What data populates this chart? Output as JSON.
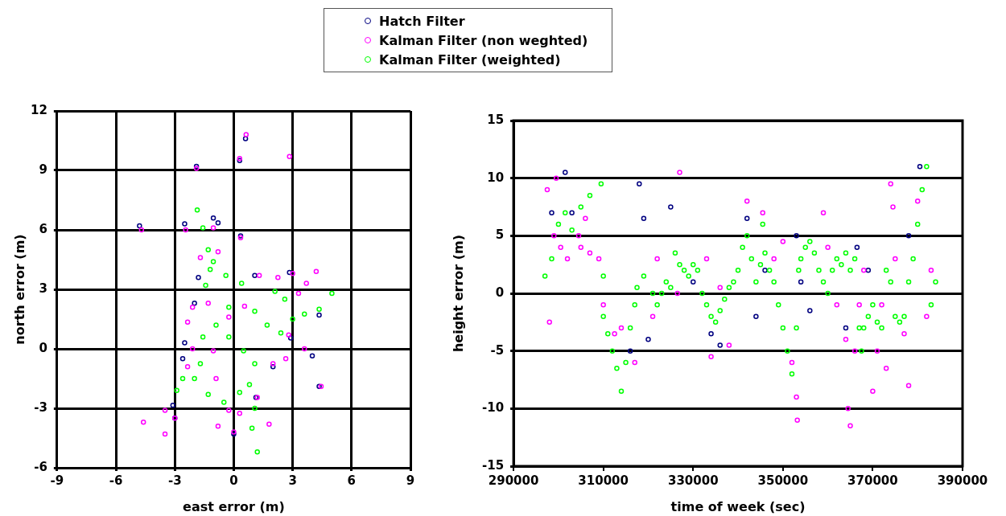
{
  "chart_data": [
    {
      "type": "scatter",
      "xlabel": "east error (m)",
      "ylabel": "north error (m)",
      "xlim": [
        -9,
        9
      ],
      "ylim": [
        -6,
        12
      ],
      "xticks": [
        -9,
        -6,
        -3,
        0,
        3,
        6,
        9
      ],
      "yticks": [
        -6,
        -3,
        0,
        3,
        6,
        9,
        12
      ],
      "grid": true,
      "legend": "top",
      "marker": "circle",
      "series": [
        {
          "name": "Hatch Filter",
          "color": "#000080",
          "x": [
            0.6,
            0.3,
            -1.9,
            -4.8,
            -2.5,
            -1.04,
            -0.8,
            0.35,
            -1.8,
            -2.0,
            -2.5,
            -2.6,
            4.0,
            4.35,
            4.35,
            2.9,
            2.0,
            1.13,
            0,
            -3.0,
            -3.1,
            1.07,
            2.84
          ],
          "values": [
            10.6,
            9.5,
            9.2,
            6.2,
            6.3,
            6.6,
            6.35,
            5.7,
            3.6,
            2.3,
            0.3,
            -0.5,
            -0.35,
            -1.9,
            1.7,
            0.55,
            -0.9,
            -2.45,
            -4.3,
            -3.5,
            -2.85,
            3.7,
            3.85
          ]
        },
        {
          "name": "Kalman Filter (non weghted)",
          "color": "#ff00ff",
          "x": [
            -1.9,
            0.3,
            0.63,
            2.84,
            -4.7,
            -2.45,
            0.35,
            -1.04,
            -0.8,
            -1.7,
            4.2,
            3.7,
            3.3,
            3.0,
            2.25,
            -2.1,
            -2.35,
            -1.3,
            -2.1,
            -2.35,
            -0.9,
            -0.25,
            0,
            -0.8,
            0.3,
            1.8,
            4.45,
            3.6,
            -3.5,
            -4.6,
            -3.5,
            -3.0,
            2.65,
            2.0,
            2.8,
            0.55,
            -0.25,
            -1.04,
            1.3,
            1.2
          ],
          "values": [
            9.1,
            9.6,
            10.8,
            9.7,
            6.0,
            6.0,
            5.6,
            6.1,
            4.9,
            4.6,
            3.9,
            3.3,
            2.8,
            3.8,
            3.6,
            2.1,
            1.35,
            2.3,
            0,
            -0.9,
            -1.5,
            -3.1,
            -4.2,
            -3.9,
            -3.25,
            -3.8,
            -1.9,
            0,
            -3.1,
            -3.7,
            -4.3,
            -3.5,
            -0.5,
            -0.75,
            0.7,
            2.15,
            1.6,
            -0.1,
            3.7,
            -2.45
          ]
        },
        {
          "name": "Kalman Filter (weighted)",
          "color": "#00ff00",
          "x": [
            -1.86,
            -1.57,
            -1.3,
            -1.04,
            -0.4,
            -1.2,
            -1.43,
            0.4,
            2.1,
            2.6,
            3.0,
            -0.25,
            1.07,
            1.7,
            2.4,
            0.5,
            1.07,
            0.8,
            -0.25,
            -0.9,
            -1.57,
            -1.7,
            3.6,
            4.35,
            5.0,
            -2.9,
            -2.6,
            -2.0,
            -1.3,
            -0.5,
            0.3,
            1.07,
            0.93,
            1.2
          ],
          "values": [
            7.0,
            6.1,
            5.0,
            4.4,
            3.7,
            4.0,
            3.2,
            3.3,
            2.9,
            2.5,
            1.5,
            2.1,
            1.9,
            1.2,
            0.8,
            -0.1,
            -0.75,
            -1.8,
            0.6,
            1.2,
            0.6,
            -0.75,
            1.75,
            2.0,
            2.8,
            -2.1,
            -1.5,
            -1.5,
            -2.3,
            -2.7,
            -2.2,
            -3.0,
            -4.0,
            -5.2
          ]
        }
      ]
    },
    {
      "type": "scatter",
      "xlabel": "time of week (sec)",
      "ylabel": "height error (m)",
      "xlim": [
        290000,
        390000
      ],
      "ylim": [
        -15,
        15
      ],
      "xticks": [
        290000,
        310000,
        330000,
        350000,
        370000,
        390000
      ],
      "yticks": [
        -15,
        -10,
        -5,
        0,
        5,
        10,
        15
      ],
      "grid": "y",
      "marker": "circle",
      "series": [
        {
          "color": "#000080",
          "x": [
            298500,
            301500,
            303000,
            316000,
            318000,
            319000,
            320000,
            325000,
            330000,
            334000,
            336000,
            342000,
            344000,
            346000,
            353000,
            354000,
            356000,
            364000,
            366500,
            369000,
            378000,
            380500
          ],
          "values": [
            7,
            10.5,
            7,
            -5,
            9.5,
            6.5,
            -4,
            7.5,
            1,
            -3.5,
            -4.5,
            6.5,
            -2,
            2,
            5,
            1,
            -1.5,
            -3,
            4,
            2,
            5,
            11
          ]
        },
        {
          "color": "#ff00ff",
          "x": [
            297500,
            299500,
            298000,
            299000,
            300500,
            302000,
            304500,
            305000,
            306000,
            307000,
            309000,
            310000,
            312500,
            314000,
            317000,
            321000,
            322000,
            327000,
            326500,
            333000,
            334000,
            336000,
            338000,
            342000,
            345500,
            348000,
            350000,
            352000,
            353000,
            353200,
            359000,
            360000,
            362000,
            364000,
            364500,
            365000,
            366000,
            367000,
            368000,
            370000,
            371000,
            372000,
            373000,
            374000,
            374500,
            375000,
            377000,
            378000,
            380000,
            382000,
            383000
          ],
          "values": [
            9,
            10,
            -2.5,
            5,
            4,
            3,
            5,
            4,
            6.5,
            3.5,
            3,
            -1,
            -3.5,
            -3,
            -6,
            -2,
            3,
            10.5,
            0,
            3,
            -5.5,
            0.5,
            -4.5,
            8,
            7,
            3,
            4.5,
            -6,
            -9,
            -11,
            7,
            4,
            -1,
            -4,
            -10,
            -11.5,
            -5,
            -1,
            2,
            -8.5,
            -5,
            -1,
            -6.5,
            9.5,
            7.5,
            3,
            -3.5,
            -8,
            8,
            -2,
            2
          ]
        },
        {
          "color": "#00ff00",
          "x": [
            297000,
            298500,
            300000,
            301500,
            303000,
            305000,
            307000,
            309500,
            310000,
            310000,
            311000,
            312000,
            313000,
            314000,
            315000,
            316000,
            317000,
            317500,
            319000,
            321000,
            322000,
            323000,
            324000,
            325000,
            326000,
            327000,
            328000,
            329000,
            330000,
            331000,
            332000,
            333000,
            334000,
            335000,
            336000,
            337000,
            338000,
            339000,
            340000,
            341000,
            342000,
            343000,
            344000,
            345000,
            345500,
            346000,
            347000,
            348000,
            349000,
            350000,
            351000,
            352000,
            353000,
            353500,
            354000,
            355000,
            356000,
            357000,
            358000,
            359000,
            360000,
            361000,
            362000,
            363000,
            364000,
            365000,
            366000,
            367000,
            367500,
            368000,
            369000,
            370000,
            371000,
            372000,
            373000,
            374000,
            375000,
            376000,
            377000,
            378000,
            379000,
            380000,
            381000,
            382000,
            383000,
            384000
          ],
          "values": [
            1.5,
            3,
            6,
            7,
            5.5,
            7.5,
            8.5,
            9.5,
            1.5,
            -2,
            -3.5,
            -5,
            -6.5,
            -8.5,
            -6,
            -3,
            -1,
            0.5,
            1.5,
            0,
            -1,
            0,
            1,
            0.5,
            3.5,
            2.5,
            2,
            1.5,
            2.5,
            2,
            0,
            -1,
            -2,
            -2.5,
            -1.5,
            -0.5,
            0.5,
            1,
            2,
            4,
            5,
            3,
            1,
            2.5,
            6,
            3.5,
            2,
            1,
            -1,
            -3,
            -5,
            -7,
            -3,
            2,
            3,
            4,
            4.5,
            3.5,
            2,
            1,
            0,
            2,
            3,
            2.5,
            3.5,
            2,
            3,
            -3,
            -5,
            -3,
            -2,
            -1,
            -2.5,
            -3,
            2,
            1,
            -2,
            -2.5,
            -2,
            1,
            3,
            6,
            9,
            11,
            -1,
            1
          ]
        }
      ]
    }
  ]
}
